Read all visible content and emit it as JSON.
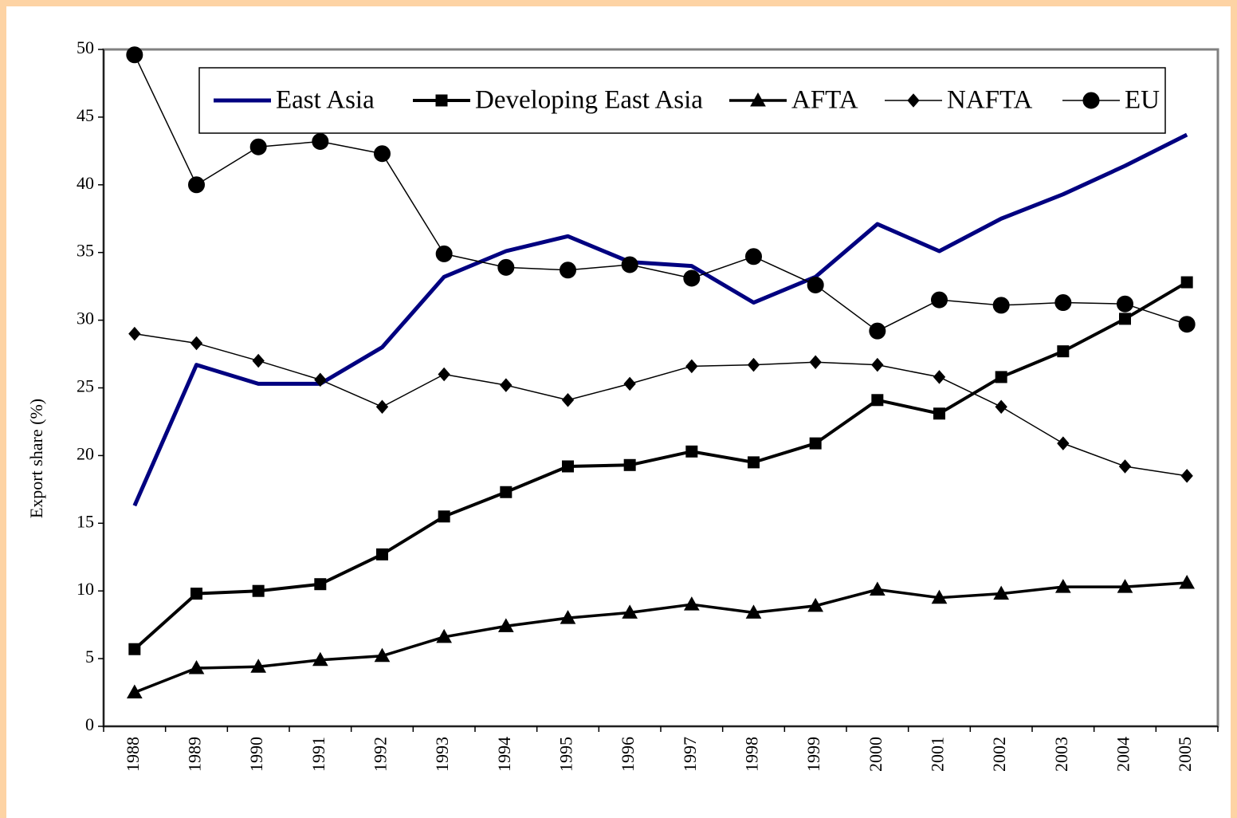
{
  "chart_data": {
    "type": "line",
    "y_label": "Export share (%)",
    "categories": [
      "1988",
      "1989",
      "1990",
      "1991",
      "1992",
      "1993",
      "1994",
      "1995",
      "1996",
      "1997",
      "1998",
      "1999",
      "2000",
      "2001",
      "2002",
      "2003",
      "2004",
      "2005"
    ],
    "ylim": [
      0,
      50
    ],
    "yticks": [
      0,
      5,
      10,
      15,
      20,
      25,
      30,
      35,
      40,
      45,
      50
    ],
    "legend": "top",
    "series": [
      {
        "name": "East Asia",
        "color": "#000080",
        "marker": "none",
        "values": [
          16.3,
          26.7,
          25.3,
          25.3,
          28.0,
          33.2,
          35.1,
          36.2,
          34.3,
          34.0,
          31.3,
          33.2,
          37.1,
          35.1,
          37.5,
          39.3,
          41.4,
          43.7
        ]
      },
      {
        "name": "Developing East Asia",
        "color": "#000000",
        "marker": "square",
        "values": [
          5.7,
          9.8,
          10.0,
          10.5,
          12.7,
          15.5,
          17.3,
          19.2,
          19.3,
          20.3,
          19.5,
          20.9,
          24.1,
          23.1,
          25.8,
          27.7,
          30.1,
          32.8
        ]
      },
      {
        "name": "AFTA",
        "color": "#000000",
        "marker": "triangle",
        "values": [
          2.5,
          4.3,
          4.4,
          4.9,
          5.2,
          6.6,
          7.4,
          8.0,
          8.4,
          9.0,
          8.4,
          8.9,
          10.1,
          9.5,
          9.8,
          10.3,
          10.3,
          10.6
        ]
      },
      {
        "name": "NAFTA",
        "color": "#000000",
        "marker": "diamond",
        "values": [
          29.0,
          28.3,
          27.0,
          25.6,
          23.6,
          26.0,
          25.2,
          24.1,
          25.3,
          26.6,
          26.7,
          26.9,
          26.7,
          25.8,
          23.6,
          20.9,
          19.2,
          18.5
        ]
      },
      {
        "name": "EU",
        "color": "#000000",
        "marker": "circle",
        "values": [
          49.6,
          40.0,
          42.8,
          43.2,
          42.3,
          34.9,
          33.9,
          33.7,
          34.1,
          33.1,
          34.7,
          32.6,
          29.2,
          31.5,
          31.1,
          31.3,
          31.2,
          29.7
        ]
      }
    ]
  }
}
